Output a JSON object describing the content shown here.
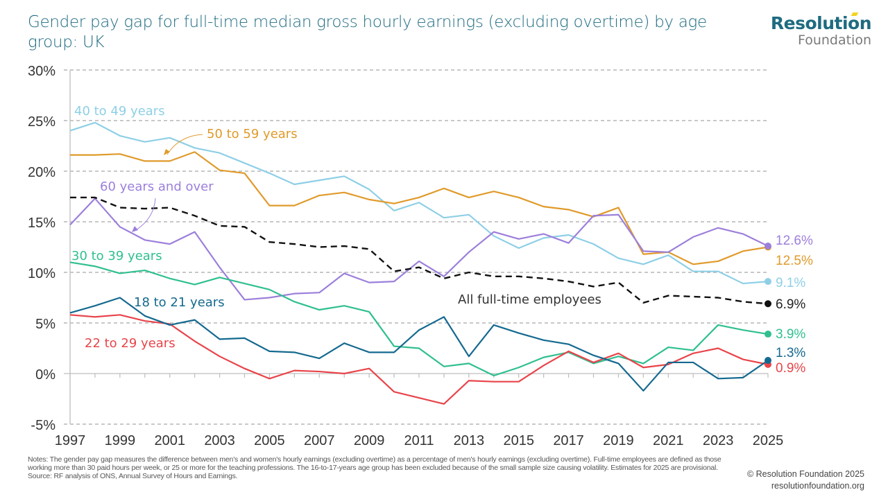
{
  "title": "Gender pay gap for full-time median gross hourly earnings (excluding overtime) by age group: UK",
  "logo": {
    "top": "Resolution",
    "bottom": "Foundation"
  },
  "notes": "Notes: The gender pay gap measures the difference between men's and women's hourly earnings (excluding overtime) as a percentage of men's hourly earnings (excluding overtime). Full-time employees are defined as those working more than 30 paid hours per week, or 25 or more for the teaching professions. The 16-to-17-years age group has been excluded because of the small sample size causing volatility. Estimates for 2025 are provisional.",
  "source": "Source: RF analysis of ONS, Annual Survey of Hours and Earnings.",
  "credit": {
    "line1": "© Resolution Foundation 2025",
    "line2": "resolutionfoundation.org"
  },
  "chart_data": {
    "type": "line",
    "title": "Gender pay gap for full-time median gross hourly earnings (excluding overtime) by age group: UK",
    "xlabel": "",
    "ylabel": "",
    "x": [
      1997,
      1998,
      1999,
      2000,
      2001,
      2002,
      2003,
      2004,
      2005,
      2006,
      2007,
      2008,
      2009,
      2010,
      2011,
      2012,
      2013,
      2014,
      2015,
      2016,
      2017,
      2018,
      2019,
      2020,
      2021,
      2022,
      2023,
      2024,
      2025
    ],
    "x_ticks": [
      "1997",
      "1999",
      "2001",
      "2003",
      "2005",
      "2007",
      "2009",
      "2011",
      "2013",
      "2015",
      "2017",
      "2019",
      "2021",
      "2023",
      "2025"
    ],
    "y_ticks": [
      "30%",
      "25%",
      "20%",
      "15%",
      "10%",
      "5%",
      "0%",
      "-5%"
    ],
    "y_tick_values": [
      30,
      25,
      20,
      15,
      10,
      5,
      0,
      -5
    ],
    "ylim": [
      -5,
      30
    ],
    "xlim": [
      1997,
      2025
    ],
    "grid": "horizontal-dashed",
    "legend": "inline-labels",
    "series": [
      {
        "name": "40 to 49 years",
        "color": "#8ecfe6",
        "dashed": false,
        "end_label": "9.1%",
        "values": [
          24.0,
          24.8,
          23.5,
          22.9,
          23.3,
          22.3,
          21.8,
          20.8,
          19.8,
          18.7,
          19.1,
          19.5,
          18.2,
          16.1,
          16.9,
          15.4,
          15.7,
          13.6,
          12.4,
          13.4,
          13.7,
          12.8,
          11.4,
          10.8,
          11.7,
          10.1,
          10.1,
          8.9,
          9.1
        ]
      },
      {
        "name": "50 to 59 years",
        "color": "#e09a2a",
        "dashed": false,
        "end_label": "12.5%",
        "values": [
          21.6,
          21.6,
          21.7,
          21.0,
          21.0,
          21.9,
          20.1,
          19.8,
          16.6,
          16.6,
          17.6,
          17.9,
          17.2,
          16.8,
          17.4,
          18.3,
          17.4,
          18.0,
          17.4,
          16.5,
          16.2,
          15.5,
          16.4,
          11.8,
          12.0,
          10.8,
          11.1,
          12.1,
          12.5
        ]
      },
      {
        "name": "60 years and over",
        "color": "#9c7fdb",
        "dashed": false,
        "end_label": "12.6%",
        "values": [
          14.7,
          17.3,
          14.5,
          13.2,
          12.8,
          14.0,
          10.5,
          7.3,
          7.5,
          7.9,
          8.0,
          9.9,
          9.0,
          9.1,
          11.1,
          9.6,
          12.0,
          14.0,
          13.3,
          13.8,
          12.9,
          15.6,
          15.7,
          12.1,
          12.0,
          13.5,
          14.4,
          13.8,
          12.6
        ]
      },
      {
        "name": "All full-time employees",
        "color": "#111111",
        "dashed": true,
        "end_label": "6.9%",
        "values": [
          17.4,
          17.4,
          16.4,
          16.3,
          16.4,
          15.6,
          14.6,
          14.5,
          13.0,
          12.8,
          12.5,
          12.6,
          12.3,
          10.1,
          10.5,
          9.4,
          10.0,
          9.6,
          9.6,
          9.4,
          9.1,
          8.6,
          9.0,
          7.0,
          7.7,
          7.6,
          7.5,
          7.1,
          6.9
        ]
      },
      {
        "name": "30 to 39 years",
        "color": "#2fbf8f",
        "dashed": false,
        "end_label": "3.9%",
        "values": [
          11.0,
          10.6,
          9.9,
          10.2,
          9.4,
          8.8,
          9.5,
          8.9,
          8.3,
          7.1,
          6.3,
          6.7,
          6.1,
          2.7,
          2.5,
          0.7,
          1.0,
          -0.2,
          0.6,
          1.6,
          2.1,
          1.0,
          1.7,
          1.0,
          2.6,
          2.3,
          4.8,
          4.3,
          3.9
        ]
      },
      {
        "name": "18 to 21 years",
        "color": "#14698f",
        "dashed": false,
        "end_label": "1.3%",
        "values": [
          6.0,
          6.7,
          7.5,
          5.7,
          4.8,
          5.3,
          3.4,
          3.5,
          2.2,
          2.1,
          1.5,
          3.0,
          2.1,
          2.1,
          4.3,
          5.6,
          1.7,
          4.8,
          4.0,
          3.3,
          2.9,
          1.8,
          1.0,
          -1.7,
          1.1,
          1.1,
          -0.5,
          -0.4,
          1.3
        ]
      },
      {
        "name": "22 to 29 years",
        "color": "#e8444a",
        "dashed": false,
        "end_label": "0.9%",
        "values": [
          5.8,
          5.6,
          5.8,
          5.2,
          4.9,
          3.2,
          1.7,
          0.5,
          -0.5,
          0.3,
          0.2,
          0.0,
          0.5,
          -1.8,
          -2.4,
          -3.0,
          -0.7,
          -0.8,
          -0.8,
          0.8,
          2.2,
          1.1,
          2.0,
          0.6,
          0.9,
          2.0,
          2.5,
          1.4,
          0.9
        ]
      }
    ],
    "annotations": [
      {
        "text": "40 to 49 years",
        "series": "40 to 49 years"
      },
      {
        "text": "50 to 59 years",
        "series": "50 to 59 years",
        "arrow": true
      },
      {
        "text": "60 years and over",
        "series": "60 years and over",
        "arrow": true
      },
      {
        "text": "30 to 39 years",
        "series": "30 to 39 years"
      },
      {
        "text": "18 to 21 years",
        "series": "18 to 21 years"
      },
      {
        "text": "22 to 29 years",
        "series": "22 to 29 years"
      },
      {
        "text": "All full-time employees",
        "series": "All full-time employees"
      }
    ]
  }
}
